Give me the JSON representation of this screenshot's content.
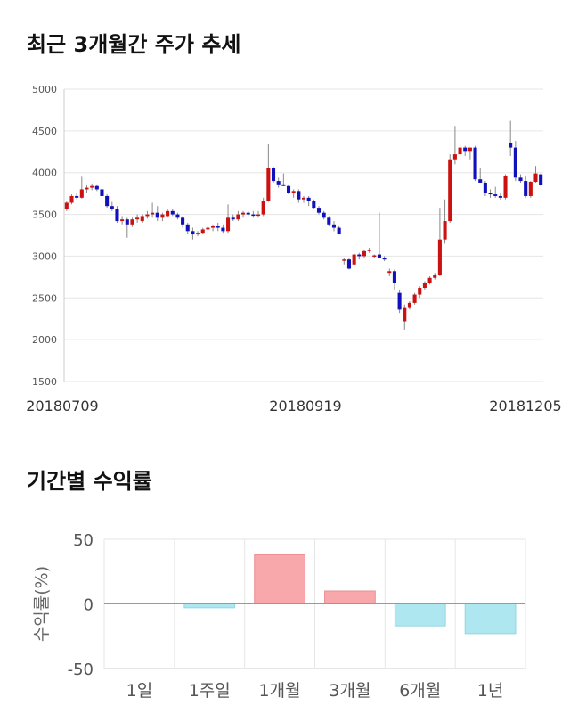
{
  "section1": {
    "title": "최근 3개월간 주가 추세"
  },
  "section2": {
    "title": "기간별 수익률"
  },
  "colors": {
    "up": "#cc1111",
    "down": "#1111bb",
    "wick": "#888888",
    "bar_pos": "#f8a7aa",
    "bar_neg": "#aee7f0",
    "grid": "#e6e6e6"
  },
  "chart_data": [
    {
      "type": "candlestick",
      "y_ticks": [
        "5000",
        "4500",
        "4000",
        "3500",
        "3000",
        "2500",
        "2000",
        "1500"
      ],
      "ylim": [
        1500,
        5000
      ],
      "x_ticks": [
        "20180709",
        "20180919",
        "20181205"
      ],
      "candles": [
        [
          3560,
          3660,
          3540,
          3640
        ],
        [
          3640,
          3740,
          3620,
          3720
        ],
        [
          3720,
          3760,
          3680,
          3700
        ],
        [
          3700,
          3950,
          3690,
          3800
        ],
        [
          3800,
          3850,
          3760,
          3820
        ],
        [
          3820,
          3870,
          3790,
          3840
        ],
        [
          3840,
          3860,
          3780,
          3800
        ],
        [
          3800,
          3820,
          3700,
          3720
        ],
        [
          3720,
          3740,
          3580,
          3600
        ],
        [
          3600,
          3650,
          3540,
          3560
        ],
        [
          3560,
          3600,
          3400,
          3420
        ],
        [
          3420,
          3480,
          3380,
          3440
        ],
        [
          3440,
          3460,
          3220,
          3380
        ],
        [
          3380,
          3460,
          3350,
          3440
        ],
        [
          3440,
          3500,
          3400,
          3460
        ],
        [
          3420,
          3500,
          3400,
          3480
        ],
        [
          3480,
          3540,
          3450,
          3500
        ],
        [
          3500,
          3640,
          3460,
          3520
        ],
        [
          3520,
          3600,
          3420,
          3460
        ],
        [
          3460,
          3520,
          3420,
          3500
        ],
        [
          3480,
          3560,
          3460,
          3540
        ],
        [
          3540,
          3560,
          3480,
          3500
        ],
        [
          3500,
          3520,
          3440,
          3460
        ],
        [
          3460,
          3480,
          3340,
          3380
        ],
        [
          3380,
          3400,
          3260,
          3300
        ],
        [
          3300,
          3340,
          3200,
          3260
        ],
        [
          3260,
          3300,
          3240,
          3280
        ],
        [
          3280,
          3340,
          3260,
          3320
        ],
        [
          3320,
          3360,
          3280,
          3340
        ],
        [
          3340,
          3380,
          3300,
          3360
        ],
        [
          3360,
          3400,
          3300,
          3340
        ],
        [
          3340,
          3380,
          3280,
          3300
        ],
        [
          3300,
          3620,
          3280,
          3460
        ],
        [
          3460,
          3500,
          3420,
          3440
        ],
        [
          3440,
          3540,
          3420,
          3500
        ],
        [
          3500,
          3540,
          3460,
          3520
        ],
        [
          3520,
          3540,
          3480,
          3500
        ],
        [
          3500,
          3540,
          3460,
          3490
        ],
        [
          3490,
          3540,
          3460,
          3500
        ],
        [
          3500,
          3700,
          3480,
          3660
        ],
        [
          3660,
          4340,
          3650,
          4060
        ],
        [
          4060,
          4070,
          3880,
          3900
        ],
        [
          3900,
          3940,
          3820,
          3860
        ],
        [
          3860,
          3990,
          3840,
          3840
        ],
        [
          3840,
          3860,
          3740,
          3760
        ],
        [
          3760,
          3800,
          3700,
          3780
        ],
        [
          3780,
          3800,
          3640,
          3680
        ],
        [
          3680,
          3720,
          3640,
          3700
        ],
        [
          3700,
          3720,
          3600,
          3660
        ],
        [
          3660,
          3680,
          3560,
          3580
        ],
        [
          3580,
          3600,
          3500,
          3520
        ],
        [
          3520,
          3540,
          3440,
          3460
        ],
        [
          3460,
          3480,
          3360,
          3380
        ],
        [
          3380,
          3420,
          3300,
          3340
        ],
        [
          3340,
          3360,
          3260,
          3260
        ],
        [
          2950,
          2980,
          2900,
          2960
        ],
        [
          2960,
          2980,
          2840,
          2850
        ],
        [
          2900,
          3040,
          2890,
          3020
        ],
        [
          3020,
          3040,
          2960,
          3000
        ],
        [
          3000,
          3080,
          2980,
          3060
        ],
        [
          3060,
          3100,
          3040,
          3080
        ],
        [
          3000,
          3020,
          2980,
          3010
        ],
        [
          3020,
          3520,
          3000,
          2980
        ],
        [
          2980,
          3000,
          2940,
          2960
        ],
        [
          2800,
          2850,
          2760,
          2820
        ],
        [
          2820,
          2840,
          2600,
          2680
        ],
        [
          2560,
          2600,
          2320,
          2360
        ],
        [
          2220,
          2420,
          2120,
          2390
        ],
        [
          2390,
          2460,
          2360,
          2440
        ],
        [
          2440,
          2560,
          2420,
          2540
        ],
        [
          2540,
          2640,
          2500,
          2620
        ],
        [
          2620,
          2700,
          2600,
          2680
        ],
        [
          2680,
          2760,
          2660,
          2740
        ],
        [
          2740,
          2800,
          2720,
          2780
        ],
        [
          2780,
          3580,
          2760,
          3200
        ],
        [
          3200,
          3680,
          3150,
          3420
        ],
        [
          3420,
          4220,
          3400,
          4160
        ],
        [
          4160,
          4560,
          4100,
          4220
        ],
        [
          4220,
          4360,
          4140,
          4300
        ],
        [
          4300,
          4320,
          4200,
          4260
        ],
        [
          4260,
          4300,
          4160,
          4300
        ],
        [
          4300,
          4320,
          3900,
          3920
        ],
        [
          3920,
          4060,
          3880,
          3880
        ],
        [
          3880,
          3900,
          3720,
          3760
        ],
        [
          3760,
          3800,
          3700,
          3740
        ],
        [
          3740,
          3830,
          3700,
          3720
        ],
        [
          3720,
          3760,
          3680,
          3700
        ],
        [
          3700,
          3980,
          3680,
          3960
        ],
        [
          4360,
          4620,
          4200,
          4300
        ],
        [
          4300,
          4380,
          3900,
          3940
        ],
        [
          3940,
          3980,
          3880,
          3900
        ],
        [
          3900,
          3960,
          3700,
          3720
        ],
        [
          3720,
          3900,
          3700,
          3890
        ],
        [
          3890,
          4080,
          3880,
          3990
        ],
        [
          3980,
          3990,
          3840,
          3850
        ]
      ]
    },
    {
      "type": "bar",
      "categories": [
        "1일",
        "1주일",
        "1개월",
        "3개월",
        "6개월",
        "1년"
      ],
      "values": [
        0,
        -3,
        38,
        10,
        -17,
        -23
      ],
      "ylim": [
        -50,
        50
      ],
      "y_ticks": [
        "50",
        "0",
        "-50"
      ],
      "ylabel": "수익률(%)"
    }
  ]
}
